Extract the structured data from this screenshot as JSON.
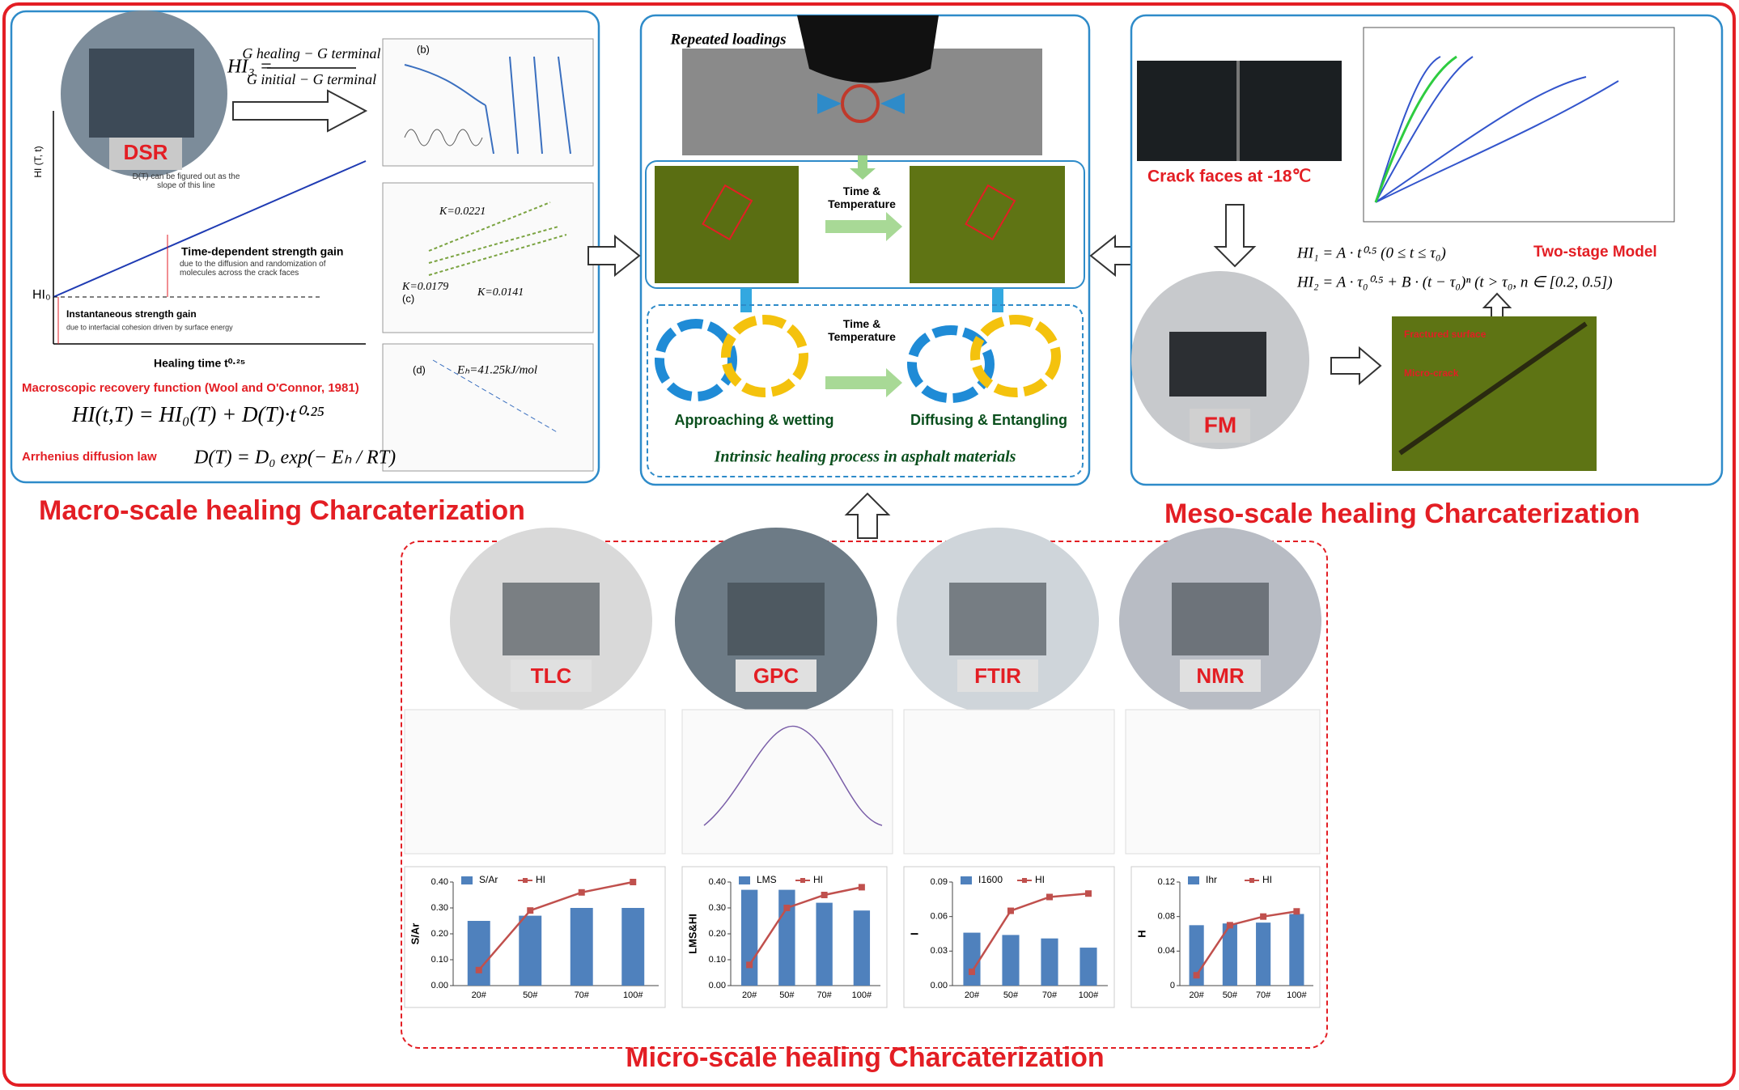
{
  "macro": {
    "title": "Macro-scale healing Charcaterization",
    "instrument": "DSR",
    "hi3_lhs": "HI₃ =",
    "hi3_numerator": "G healing − G terminal",
    "hi3_denominator": "G initial − G terminal",
    "hi0": "HI₀",
    "y_axis": "HI (T, t)",
    "x_axis": "Healing time  t⁰·²⁵",
    "slope_note": "D(T) can be figured out as the slope of this line",
    "time_gain": "Time-dependent strength gain",
    "time_gain_note": "due to the diffusion and randomization of molecules across the crack faces",
    "instant_gain": "Instantaneous strength gain",
    "instant_gain_note": "due to interfacial cohesion driven by surface energy",
    "panel_b": "(b)",
    "panel_c": "(c)",
    "panel_d": "(d)",
    "k_values": [
      "K=0.0221",
      "K=0.0179",
      "K=0.0141"
    ],
    "activation": "Eₕ=41.25kJ/mol",
    "recovery_title": "Macroscopic recovery function (Wool and O'Connor, 1981)",
    "recovery_eq": "HI(t,T) = HI₀(T) + D(T)·t⁰·²⁵",
    "arrhenius_title": "Arrhenius diffusion law",
    "arrhenius_eq": "D(T) = D₀ exp(− Eₕ / RT)"
  },
  "center": {
    "loading": "Repeated loadings",
    "time_temp_top": "Time & Temperature",
    "time_temp_bottom": "Time & Temperature",
    "stage_1": "Approaching & wetting",
    "stage_2": "Diffusing & Entangling",
    "caption": "Intrinsic healing process in asphalt materials"
  },
  "meso": {
    "title": "Meso-scale healing Charcaterization",
    "crack": "Crack faces at -18℃",
    "model": "Two-stage Model",
    "eq1": "HI₁ = A · t⁰·⁵ (0 ≤ t ≤ τ₀)",
    "eq2": "HI₂ = A · τ₀⁰·⁵ + B · (t − τ₀)ⁿ (t > τ₀, n ∈ [0.2, 0.5])",
    "instrument": "FM",
    "fractured": "Fractured surface",
    "microcrack": "Micro-crack"
  },
  "micro": {
    "title": "Micro-scale healing Charcaterization",
    "instruments": [
      "TLC",
      "GPC",
      "FTIR",
      "NMR"
    ]
  },
  "chart_data": [
    {
      "type": "bar",
      "categories": [
        "20#",
        "50#",
        "70#",
        "100#"
      ],
      "ylim": [
        0,
        0.4
      ],
      "yticks": [
        {
          "value": 0,
          "label": "0.00"
        },
        {
          "value": 0.1,
          "label": "0.10"
        },
        {
          "value": 0.2,
          "label": "0.20"
        },
        {
          "value": 0.3,
          "label": "0.30"
        },
        {
          "value": 0.4,
          "label": "0.40"
        }
      ],
      "y_label": "S/Ar",
      "series": [
        {
          "name": "S/Ar",
          "type": "bar",
          "color": "#4f81bd",
          "values": [
            0.25,
            0.27,
            0.3,
            0.3
          ]
        },
        {
          "name": "HI",
          "type": "line",
          "color": "#c0504d",
          "values": [
            0.06,
            0.29,
            0.36,
            0.4
          ]
        }
      ]
    },
    {
      "type": "bar",
      "categories": [
        "20#",
        "50#",
        "70#",
        "100#"
      ],
      "ylim": [
        0,
        0.4
      ],
      "yticks": [
        {
          "value": 0,
          "label": "0.00"
        },
        {
          "value": 0.1,
          "label": "0.10"
        },
        {
          "value": 0.2,
          "label": "0.20"
        },
        {
          "value": 0.3,
          "label": "0.30"
        },
        {
          "value": 0.4,
          "label": "0.40"
        }
      ],
      "y_label": "LMS&HI",
      "series": [
        {
          "name": "LMS",
          "type": "bar",
          "color": "#4f81bd",
          "values": [
            0.37,
            0.37,
            0.32,
            0.29
          ]
        },
        {
          "name": "HI",
          "type": "line",
          "color": "#c0504d",
          "values": [
            0.08,
            0.3,
            0.35,
            0.38
          ]
        }
      ]
    },
    {
      "type": "bar",
      "categories": [
        "20#",
        "50#",
        "70#",
        "100#"
      ],
      "ylim": [
        0,
        0.09
      ],
      "yticks": [
        {
          "value": 0,
          "label": "0.00"
        },
        {
          "value": 0.03,
          "label": "0.03"
        },
        {
          "value": 0.06,
          "label": "0.06"
        },
        {
          "value": 0.09,
          "label": "0.09"
        }
      ],
      "y_label": "I",
      "series": [
        {
          "name": "I1600",
          "type": "bar",
          "color": "#4f81bd",
          "values": [
            0.046,
            0.044,
            0.041,
            0.033
          ]
        },
        {
          "name": "HI",
          "type": "line",
          "color": "#c0504d",
          "values": [
            0.012,
            0.065,
            0.077,
            0.08
          ]
        }
      ]
    },
    {
      "type": "bar",
      "categories": [
        "20#",
        "50#",
        "70#",
        "100#"
      ],
      "ylim": [
        0,
        0.12
      ],
      "yticks": [
        {
          "value": 0,
          "label": "0"
        },
        {
          "value": 0.04,
          "label": "0.04"
        },
        {
          "value": 0.08,
          "label": "0.08"
        },
        {
          "value": 0.12,
          "label": "0.12"
        }
      ],
      "y_label": "H",
      "series": [
        {
          "name": "Ihr",
          "type": "bar",
          "color": "#4f81bd",
          "values": [
            0.07,
            0.072,
            0.073,
            0.083
          ]
        },
        {
          "name": "HI",
          "type": "line",
          "color": "#c0504d",
          "values": [
            0.012,
            0.07,
            0.08,
            0.086
          ]
        }
      ]
    }
  ]
}
